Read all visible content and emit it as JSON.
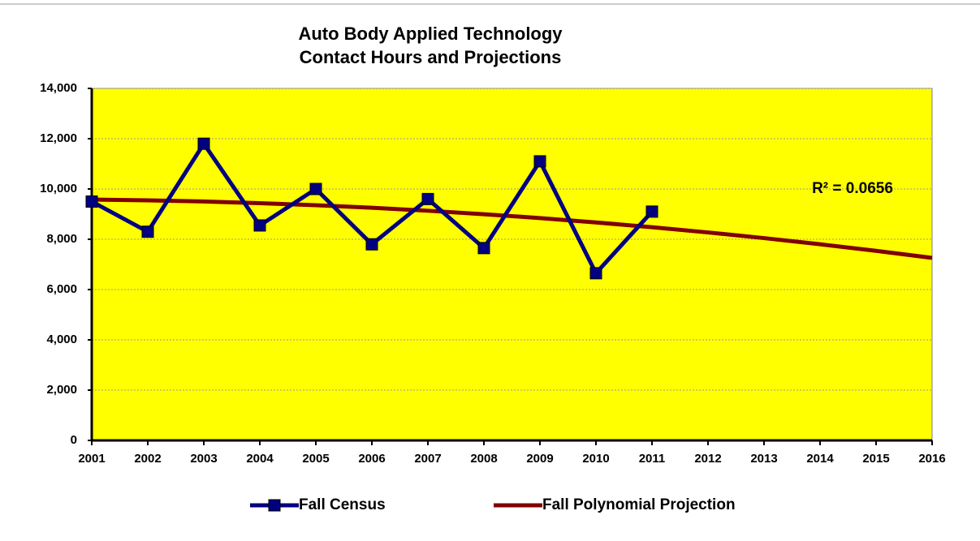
{
  "chart_data": {
    "type": "line",
    "title": "Auto Body Applied Technology",
    "subtitle": "Contact Hours and Projections",
    "categories": [
      "2001",
      "2002",
      "2003",
      "2004",
      "2005",
      "2006",
      "2007",
      "2008",
      "2009",
      "2010",
      "2011",
      "2012",
      "2013",
      "2014",
      "2015",
      "2016"
    ],
    "series": [
      {
        "name": "Fall Census",
        "color": "#000080",
        "values": [
          9500,
          8300,
          11800,
          8550,
          10000,
          7800,
          9600,
          7650,
          11100,
          6650,
          9100,
          null,
          null,
          null,
          null,
          null
        ]
      },
      {
        "name": "Fall Polynomial Projection",
        "color": "#800000",
        "values": [
          9580,
          9550,
          9503,
          9437,
          9354,
          9253,
          9135,
          8997,
          8843,
          8671,
          8480,
          8272,
          8046,
          7802,
          7540,
          7260
        ]
      }
    ],
    "annotations": [
      "R² = 0.0656"
    ],
    "ylim": [
      0,
      14000
    ],
    "yticks": [
      {
        "value": 0,
        "label": "0"
      },
      {
        "value": 2000,
        "label": "2,000"
      },
      {
        "value": 4000,
        "label": "4,000"
      },
      {
        "value": 6000,
        "label": "6,000"
      },
      {
        "value": 8000,
        "label": "8,000"
      },
      {
        "value": 10000,
        "label": "10,000"
      },
      {
        "value": 12000,
        "label": "12,000"
      },
      {
        "value": 14000,
        "label": "14,000"
      }
    ],
    "grid": true,
    "legend": "bottom",
    "background": "#ffff00"
  }
}
